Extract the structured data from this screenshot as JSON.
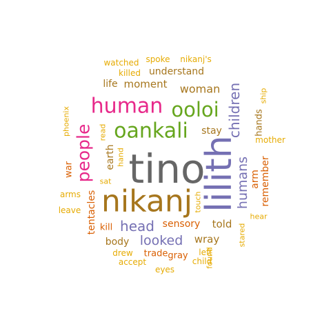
{
  "palette": {
    "orange": "#D95F02",
    "brown": "#A6761D",
    "purple": "#7570B3",
    "magenta": "#E7298A",
    "green": "#66A61E",
    "gray": "#666666",
    "gold": "#E6AB02"
  },
  "words": [
    {
      "text": "tino",
      "color": "gray"
    },
    {
      "text": "lilith",
      "color": "purple",
      "rotated": true
    },
    {
      "text": "nikanj",
      "color": "brown"
    },
    {
      "text": "oankali",
      "color": "green"
    },
    {
      "text": "human",
      "color": "magenta"
    },
    {
      "text": "ooloi",
      "color": "green"
    },
    {
      "text": "people",
      "color": "magenta",
      "rotated": true
    },
    {
      "text": "humans",
      "color": "purple",
      "rotated": true
    },
    {
      "text": "children",
      "color": "purple",
      "rotated": true
    },
    {
      "text": "head",
      "color": "purple"
    },
    {
      "text": "looked",
      "color": "purple"
    },
    {
      "text": "woman",
      "color": "brown"
    },
    {
      "text": "moment",
      "color": "brown"
    },
    {
      "text": "understand",
      "color": "brown"
    },
    {
      "text": "life",
      "color": "brown"
    },
    {
      "text": "earth",
      "color": "brown",
      "rotated": true
    },
    {
      "text": "stay",
      "color": "brown"
    },
    {
      "text": "hands",
      "color": "brown",
      "rotated": true
    },
    {
      "text": "arm",
      "color": "orange",
      "rotated": true
    },
    {
      "text": "remember",
      "color": "orange",
      "rotated": true
    },
    {
      "text": "sensory",
      "color": "orange"
    },
    {
      "text": "told",
      "color": "brown"
    },
    {
      "text": "wray",
      "color": "brown"
    },
    {
      "text": "body",
      "color": "brown"
    },
    {
      "text": "tentacles",
      "color": "orange",
      "rotated": true
    },
    {
      "text": "kill",
      "color": "orange"
    },
    {
      "text": "trade",
      "color": "orange"
    },
    {
      "text": "gray",
      "color": "orange"
    },
    {
      "text": "war",
      "color": "orange",
      "rotated": true
    },
    {
      "text": "watched",
      "color": "gold"
    },
    {
      "text": "spoke",
      "color": "gold"
    },
    {
      "text": "nikanj's",
      "color": "gold"
    },
    {
      "text": "killed",
      "color": "gold"
    },
    {
      "text": "ship",
      "color": "gold",
      "rotated": true
    },
    {
      "text": "mother",
      "color": "gold"
    },
    {
      "text": "phoenix",
      "color": "gold",
      "rotated": true
    },
    {
      "text": "read",
      "color": "gold",
      "rotated": true
    },
    {
      "text": "hand",
      "color": "gold",
      "rotated": true
    },
    {
      "text": "sat",
      "color": "gold"
    },
    {
      "text": "arms",
      "color": "gold"
    },
    {
      "text": "leave",
      "color": "gold"
    },
    {
      "text": "touch",
      "color": "gold",
      "rotated": true
    },
    {
      "text": "hear",
      "color": "gold"
    },
    {
      "text": "stared",
      "color": "gold",
      "rotated": true
    },
    {
      "text": "found",
      "color": "gold",
      "rotated": true
    },
    {
      "text": "drew",
      "color": "gold"
    },
    {
      "text": "left",
      "color": "gold"
    },
    {
      "text": "accept",
      "color": "gold"
    },
    {
      "text": "child",
      "color": "gold"
    },
    {
      "text": "eyes",
      "color": "gold"
    }
  ]
}
